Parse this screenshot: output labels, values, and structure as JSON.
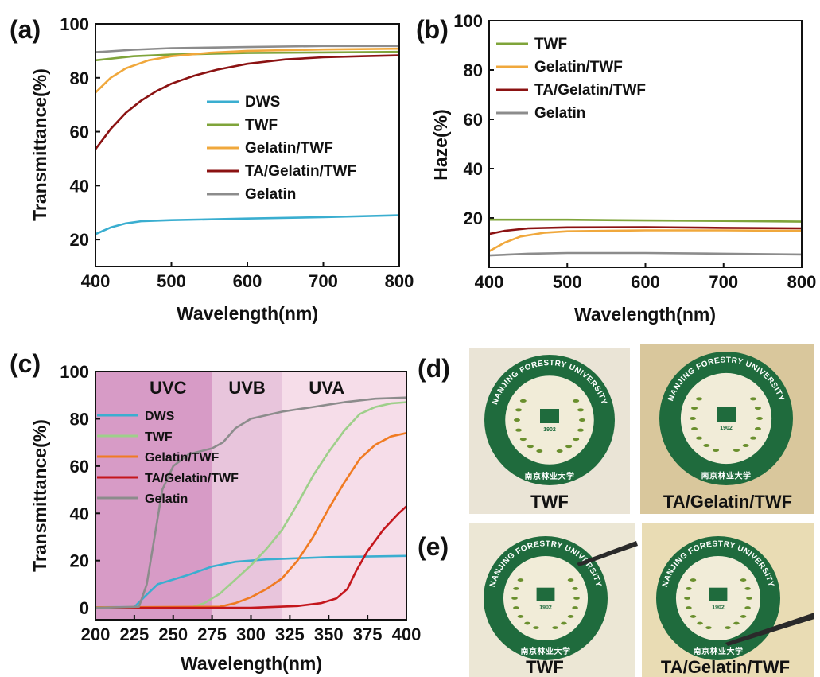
{
  "panels": {
    "a": {
      "tag": "(a)",
      "chart_data": {
        "type": "line",
        "xlabel": "Wavelength(nm)",
        "ylabel": "Transmittance(%)",
        "xlim": [
          400,
          800
        ],
        "ylim": [
          10,
          100
        ],
        "xticks": [
          400,
          500,
          600,
          700,
          800
        ],
        "yticks": [
          20,
          40,
          60,
          80,
          100
        ],
        "legend_position": "center-right",
        "series": [
          {
            "name": "DWS",
            "color": "#3aaed0",
            "points": [
              [
                400,
                22
              ],
              [
                420,
                24.5
              ],
              [
                440,
                26
              ],
              [
                460,
                26.8
              ],
              [
                500,
                27.2
              ],
              [
                600,
                27.8
              ],
              [
                700,
                28.3
              ],
              [
                800,
                29
              ]
            ]
          },
          {
            "name": "TWF",
            "color": "#7fa43a",
            "points": [
              [
                400,
                86.5
              ],
              [
                450,
                88
              ],
              [
                500,
                88.6
              ],
              [
                600,
                89.2
              ],
              [
                700,
                89.4
              ],
              [
                800,
                89.6
              ]
            ]
          },
          {
            "name": "Gelatin/TWF",
            "color": "#f0a83c",
            "points": [
              [
                400,
                74.5
              ],
              [
                420,
                80
              ],
              [
                440,
                83.5
              ],
              [
                470,
                86.5
              ],
              [
                500,
                88
              ],
              [
                550,
                89.3
              ],
              [
                600,
                90
              ],
              [
                700,
                90.5
              ],
              [
                800,
                90.8
              ]
            ]
          },
          {
            "name": "TA/Gelatin/TWF",
            "color": "#8b1212",
            "points": [
              [
                400,
                53.5
              ],
              [
                420,
                61
              ],
              [
                440,
                67
              ],
              [
                460,
                71.5
              ],
              [
                480,
                75
              ],
              [
                500,
                77.8
              ],
              [
                530,
                80.8
              ],
              [
                560,
                83
              ],
              [
                600,
                85.2
              ],
              [
                650,
                86.8
              ],
              [
                700,
                87.6
              ],
              [
                750,
                88
              ],
              [
                800,
                88.3
              ]
            ]
          },
          {
            "name": "Gelatin",
            "color": "#8c8c8c",
            "points": [
              [
                400,
                89.5
              ],
              [
                450,
                90.4
              ],
              [
                500,
                91
              ],
              [
                600,
                91.4
              ],
              [
                700,
                91.8
              ],
              [
                800,
                91.8
              ]
            ]
          }
        ]
      }
    },
    "b": {
      "tag": "(b)",
      "chart_data": {
        "type": "line",
        "xlabel": "Wavelength(nm)",
        "ylabel": "Haze(%)",
        "xlim": [
          400,
          800
        ],
        "ylim": [
          0,
          100
        ],
        "xticks": [
          400,
          500,
          600,
          700,
          800
        ],
        "yticks": [
          20,
          40,
          60,
          80,
          100
        ],
        "legend_position": "top-left",
        "series": [
          {
            "name": "TWF",
            "color": "#7fa43a",
            "points": [
              [
                400,
                19.3
              ],
              [
                500,
                19.3
              ],
              [
                600,
                19
              ],
              [
                700,
                18.8
              ],
              [
                800,
                18.5
              ]
            ]
          },
          {
            "name": "Gelatin/TWF",
            "color": "#f0a83c",
            "points": [
              [
                400,
                6.5
              ],
              [
                420,
                10
              ],
              [
                440,
                12.5
              ],
              [
                470,
                14
              ],
              [
                500,
                14.6
              ],
              [
                600,
                15
              ],
              [
                700,
                15
              ],
              [
                800,
                14.8
              ]
            ]
          },
          {
            "name": "TA/Gelatin/TWF",
            "color": "#8b1212",
            "points": [
              [
                400,
                13.5
              ],
              [
                420,
                14.8
              ],
              [
                450,
                15.8
              ],
              [
                500,
                16.2
              ],
              [
                600,
                16.3
              ],
              [
                700,
                16
              ],
              [
                800,
                15.8
              ]
            ]
          },
          {
            "name": "Gelatin",
            "color": "#8c8c8c",
            "points": [
              [
                400,
                4.8
              ],
              [
                450,
                5.5
              ],
              [
                500,
                5.8
              ],
              [
                600,
                5.8
              ],
              [
                700,
                5.5
              ],
              [
                800,
                5.2
              ]
            ]
          }
        ]
      }
    },
    "c": {
      "tag": "(c)",
      "chart_data": {
        "type": "line",
        "xlabel": "Wavelength(nm)",
        "ylabel": "Transmittance(%)",
        "xlim": [
          200,
          400
        ],
        "ylim": [
          -5,
          100
        ],
        "xticks": [
          200,
          225,
          250,
          275,
          300,
          325,
          350,
          375,
          400
        ],
        "yticks": [
          0,
          20,
          40,
          60,
          80,
          100
        ],
        "legend_position": "left",
        "bands": [
          {
            "label": "UVC",
            "from": 200,
            "to": 275,
            "color": "#d79bc6"
          },
          {
            "label": "UVB",
            "from": 275,
            "to": 320,
            "color": "#e8c5dc"
          },
          {
            "label": "UVA",
            "from": 320,
            "to": 400,
            "color": "#f6dde9"
          }
        ],
        "series": [
          {
            "name": "DWS",
            "color": "#3aaed0",
            "points": [
              [
                200,
                0.3
              ],
              [
                225,
                0.4
              ],
              [
                232,
                5
              ],
              [
                240,
                10
              ],
              [
                250,
                12
              ],
              [
                260,
                14
              ],
              [
                275,
                17.5
              ],
              [
                290,
                19.5
              ],
              [
                310,
                20.5
              ],
              [
                350,
                21.5
              ],
              [
                400,
                22
              ]
            ]
          },
          {
            "name": "TWF",
            "color": "#9ecf8a",
            "points": [
              [
                200,
                0.3
              ],
              [
                262,
                0.3
              ],
              [
                270,
                2
              ],
              [
                280,
                6
              ],
              [
                290,
                12
              ],
              [
                300,
                18
              ],
              [
                310,
                25
              ],
              [
                320,
                33
              ],
              [
                330,
                44
              ],
              [
                340,
                56
              ],
              [
                350,
                66
              ],
              [
                360,
                75
              ],
              [
                370,
                82
              ],
              [
                380,
                85
              ],
              [
                390,
                86.5
              ],
              [
                400,
                87
              ]
            ]
          },
          {
            "name": "Gelatin/TWF",
            "color": "#f07b22",
            "points": [
              [
                200,
                0.2
              ],
              [
                280,
                0.5
              ],
              [
                290,
                2
              ],
              [
                300,
                4.5
              ],
              [
                310,
                8
              ],
              [
                320,
                12.5
              ],
              [
                330,
                20
              ],
              [
                340,
                30
              ],
              [
                350,
                42
              ],
              [
                360,
                53
              ],
              [
                370,
                63
              ],
              [
                380,
                69
              ],
              [
                390,
                72.5
              ],
              [
                400,
                74
              ]
            ]
          },
          {
            "name": "TA/Gelatin/TWF",
            "color": "#c4161c",
            "points": [
              [
                200,
                0
              ],
              [
                300,
                0
              ],
              [
                330,
                0.8
              ],
              [
                345,
                2
              ],
              [
                355,
                4
              ],
              [
                362,
                8
              ],
              [
                368,
                16
              ],
              [
                375,
                24
              ],
              [
                385,
                33
              ],
              [
                395,
                40
              ],
              [
                400,
                43
              ]
            ]
          },
          {
            "name": "Gelatin",
            "color": "#8c8c8c",
            "points": [
              [
                200,
                0
              ],
              [
                228,
                0.5
              ],
              [
                233,
                10
              ],
              [
                238,
                30
              ],
              [
                243,
                50
              ],
              [
                250,
                60
              ],
              [
                260,
                65
              ],
              [
                275,
                67.5
              ],
              [
                282,
                70
              ],
              [
                290,
                76
              ],
              [
                300,
                80
              ],
              [
                320,
                83
              ],
              [
                340,
                85
              ],
              [
                360,
                87
              ],
              [
                380,
                88.5
              ],
              [
                400,
                89
              ]
            ]
          }
        ]
      }
    },
    "d": {
      "tag": "(d)",
      "photos": [
        {
          "caption": "TWF"
        },
        {
          "caption": "TA/Gelatin/TWF"
        }
      ]
    },
    "e": {
      "tag": "(e)",
      "photos": [
        {
          "caption": "TWF"
        },
        {
          "caption": "TA/Gelatin/TWF"
        }
      ]
    },
    "emblem": {
      "text": "NANJING FORESTRY UNIVERSITY",
      "year": "1902",
      "motto": "南京林业大学"
    }
  }
}
